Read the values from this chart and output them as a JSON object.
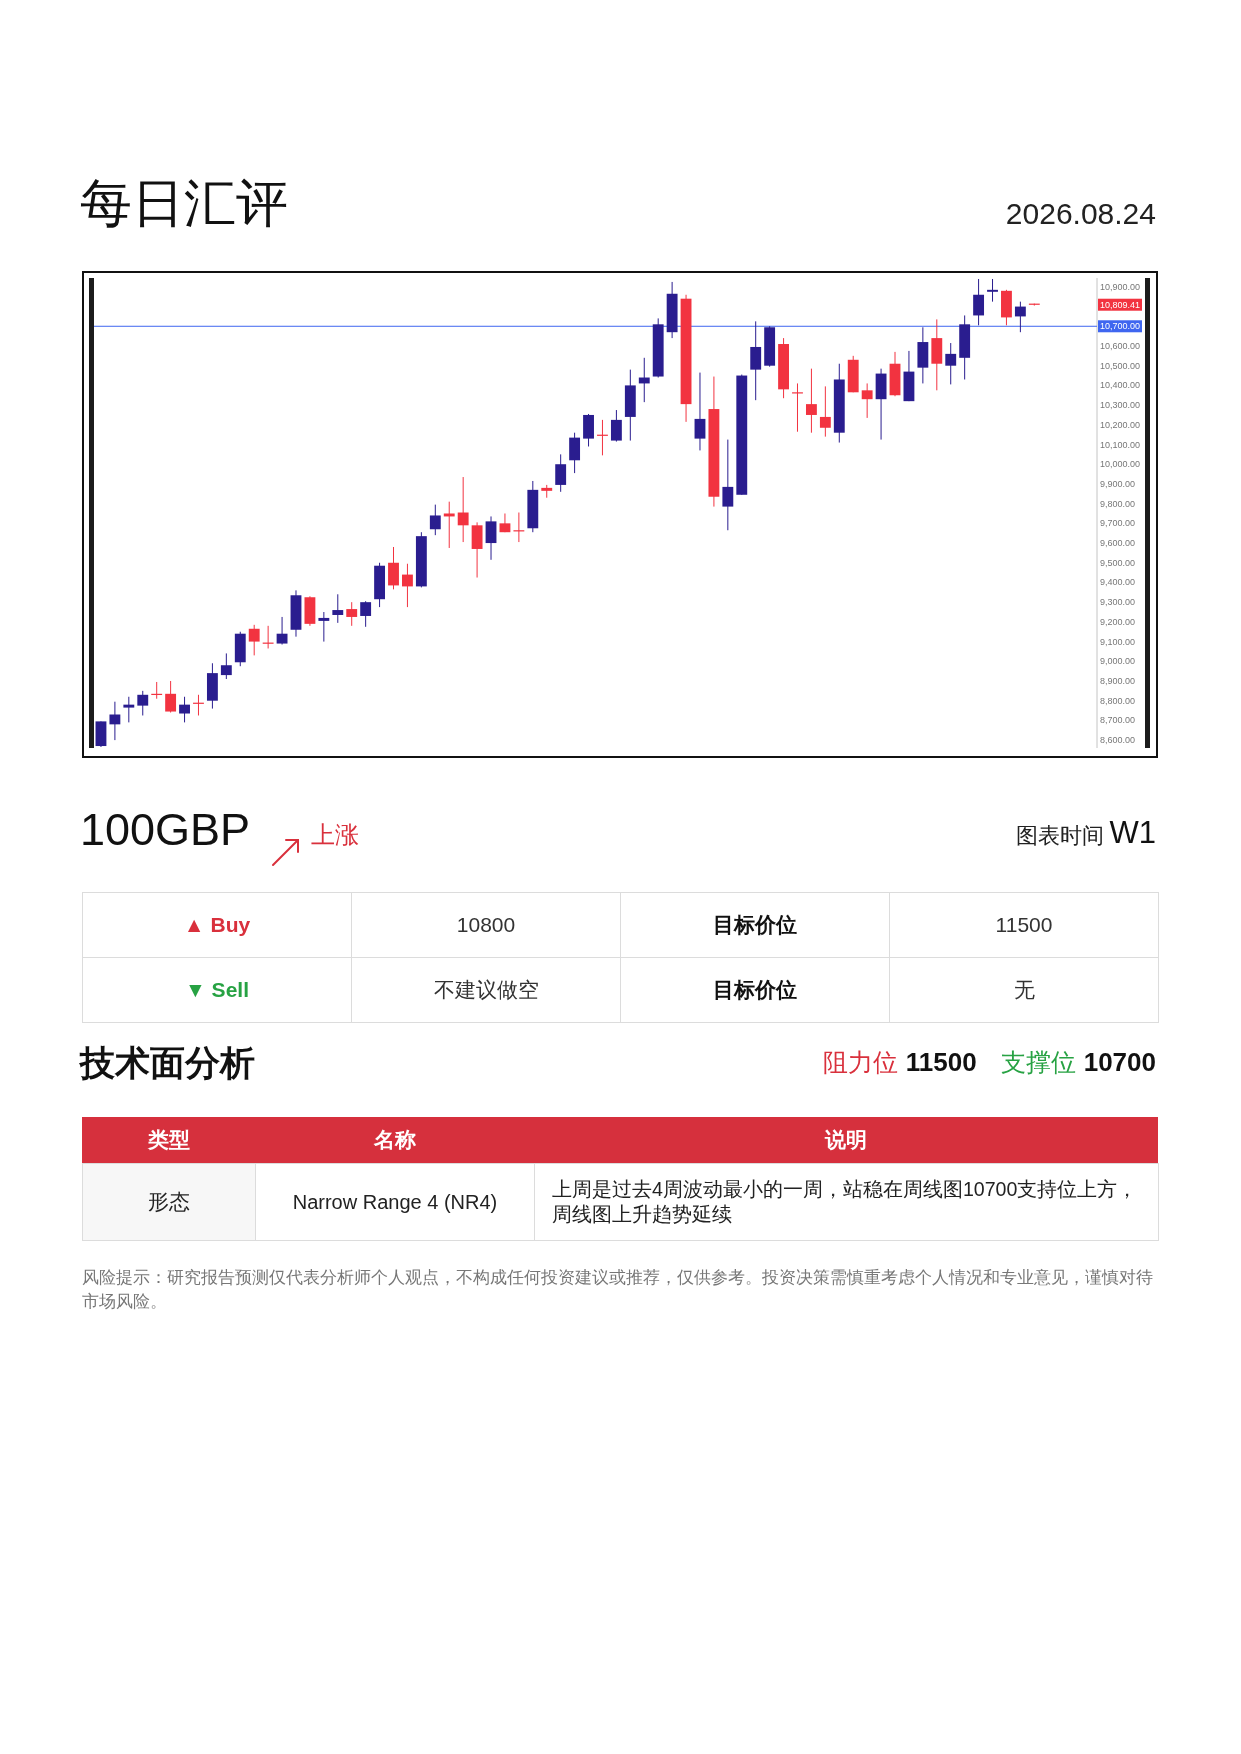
{
  "chart_data": {
    "type": "candlestick",
    "title": "每日汇评",
    "subtitle": "2026.08.24",
    "categories": [
      null,
      null,
      null,
      null,
      null,
      null,
      null,
      null,
      null,
      null,
      null,
      null,
      null,
      null,
      null,
      null,
      null,
      null,
      null,
      null,
      null,
      null,
      null,
      null,
      null,
      null,
      null,
      null,
      null,
      null,
      null,
      null,
      null,
      null,
      null,
      null,
      null,
      null,
      null,
      null,
      null,
      null,
      null,
      null,
      null,
      null,
      null,
      null,
      null,
      null,
      null,
      null,
      null,
      null,
      null,
      null,
      null,
      null,
      null,
      null,
      null,
      null,
      null,
      null,
      null,
      null,
      null,
      null,
      null,
      null,
      null,
      null
    ],
    "ohlc": [
      [
        8570,
        8695,
        8565,
        8695
      ],
      [
        8680,
        8795,
        8600,
        8730
      ],
      [
        8765,
        8820,
        8690,
        8780
      ],
      [
        8775,
        8850,
        8725,
        8830
      ],
      [
        8835,
        8895,
        8810,
        8830
      ],
      [
        8835,
        8900,
        8740,
        8745
      ],
      [
        8735,
        8820,
        8690,
        8780
      ],
      [
        8790,
        8830,
        8725,
        8785
      ],
      [
        8800,
        8990,
        8760,
        8940
      ],
      [
        8930,
        9040,
        8910,
        8980
      ],
      [
        8995,
        9150,
        8975,
        9140
      ],
      [
        9165,
        9185,
        9030,
        9100
      ],
      [
        9095,
        9180,
        9065,
        9090
      ],
      [
        9090,
        9225,
        9085,
        9140
      ],
      [
        9160,
        9360,
        9125,
        9335
      ],
      [
        9325,
        9330,
        9180,
        9190
      ],
      [
        9205,
        9250,
        9100,
        9220
      ],
      [
        9235,
        9340,
        9195,
        9260
      ],
      [
        9265,
        9300,
        9180,
        9225
      ],
      [
        9230,
        9305,
        9175,
        9300
      ],
      [
        9315,
        9500,
        9275,
        9485
      ],
      [
        9500,
        9580,
        9365,
        9385
      ],
      [
        9440,
        9495,
        9275,
        9380
      ],
      [
        9380,
        9655,
        9375,
        9635
      ],
      [
        9670,
        9795,
        9640,
        9740
      ],
      [
        9750,
        9810,
        9575,
        9735
      ],
      [
        9755,
        9935,
        9605,
        9690
      ],
      [
        9690,
        9705,
        9425,
        9570
      ],
      [
        9600,
        9735,
        9515,
        9710
      ],
      [
        9700,
        9750,
        9655,
        9655
      ],
      [
        9665,
        9755,
        9605,
        9660
      ],
      [
        9675,
        9915,
        9655,
        9870
      ],
      [
        9880,
        9895,
        9830,
        9865
      ],
      [
        9895,
        10050,
        9860,
        10000
      ],
      [
        10020,
        10160,
        9955,
        10135
      ],
      [
        10130,
        10255,
        10090,
        10250
      ],
      [
        10150,
        10225,
        10045,
        10145
      ],
      [
        10120,
        10275,
        10115,
        10225
      ],
      [
        10240,
        10480,
        10120,
        10400
      ],
      [
        10410,
        10540,
        10315,
        10440
      ],
      [
        10445,
        10740,
        10440,
        10710
      ],
      [
        10670,
        10925,
        10640,
        10865
      ],
      [
        10840,
        10860,
        10215,
        10305
      ],
      [
        10130,
        10465,
        10070,
        10230
      ],
      [
        10280,
        10445,
        9785,
        9835
      ],
      [
        9785,
        10125,
        9665,
        9885
      ],
      [
        9845,
        10455,
        9845,
        10450
      ],
      [
        10480,
        10725,
        10325,
        10595
      ],
      [
        10500,
        10700,
        10495,
        10695
      ],
      [
        10610,
        10640,
        10335,
        10380
      ],
      [
        10365,
        10410,
        10165,
        10360
      ],
      [
        10305,
        10485,
        10160,
        10250
      ],
      [
        10240,
        10395,
        10140,
        10185
      ],
      [
        10160,
        10510,
        10110,
        10430
      ],
      [
        10530,
        10550,
        10365,
        10365
      ],
      [
        10375,
        10410,
        10235,
        10330
      ],
      [
        10330,
        10485,
        10125,
        10460
      ],
      [
        10510,
        10570,
        10345,
        10350
      ],
      [
        10320,
        10575,
        10320,
        10470
      ],
      [
        10490,
        10695,
        10410,
        10620
      ],
      [
        10640,
        10735,
        10375,
        10510
      ],
      [
        10500,
        10615,
        10405,
        10560
      ],
      [
        10540,
        10755,
        10430,
        10710
      ],
      [
        10755,
        10940,
        10705,
        10860
      ],
      [
        10875,
        10940,
        10825,
        10885
      ],
      [
        10880,
        10885,
        10705,
        10745
      ],
      [
        10750,
        10825,
        10670,
        10800
      ],
      [
        10815,
        10815,
        10805,
        10809.41
      ],
      null,
      null,
      null,
      null
    ],
    "colors": [
      "#2a1d8f",
      "#2a1d8f",
      "#2a1d8f",
      "#2a1d8f",
      "#f23340",
      "#f23340",
      "#2a1d8f",
      "#f23340",
      "#2a1d8f",
      "#2a1d8f",
      "#2a1d8f",
      "#f23340",
      "#f23340",
      "#2a1d8f",
      "#2a1d8f",
      "#f23340",
      "#2a1d8f",
      "#2a1d8f",
      "#f23340",
      "#2a1d8f",
      "#2a1d8f",
      "#f23340",
      "#f23340",
      "#2a1d8f",
      "#2a1d8f",
      "#f23340",
      "#f23340",
      "#f23340",
      "#2a1d8f",
      "#f23340",
      "#f23340",
      "#2a1d8f",
      "#f23340",
      "#2a1d8f",
      "#2a1d8f",
      "#2a1d8f",
      "#f23340",
      "#2a1d8f",
      "#2a1d8f",
      "#2a1d8f",
      "#2a1d8f",
      "#2a1d8f",
      "#f23340",
      "#2a1d8f",
      "#f23340",
      "#2a1d8f",
      "#2a1d8f",
      "#2a1d8f",
      "#2a1d8f",
      "#f23340",
      "#f23340",
      "#f23340",
      "#f23340",
      "#2a1d8f",
      "#f23340",
      "#f23340",
      "#2a1d8f",
      "#f23340",
      "#2a1d8f",
      "#2a1d8f",
      "#f23340",
      "#2a1d8f",
      "#2a1d8f",
      "#2a1d8f",
      "#2a1d8f",
      "#f23340",
      "#2a1d8f",
      "#f23340",
      null,
      null,
      null,
      null
    ],
    "ylim": [
      8560,
      10945
    ],
    "yticks": [
      {
        "value": 10900,
        "label": "10,900.00"
      },
      {
        "value": 10600,
        "label": "10,600.00"
      },
      {
        "value": 10500,
        "label": "10,500.00"
      },
      {
        "value": 10400,
        "label": "10,400.00"
      },
      {
        "value": 10300,
        "label": "10,300.00"
      },
      {
        "value": 10200,
        "label": "10,200.00"
      },
      {
        "value": 10100,
        "label": "10,100.00"
      },
      {
        "value": 10000,
        "label": "10,000.00"
      },
      {
        "value": 9900,
        "label": "9,900.00"
      },
      {
        "value": 9800,
        "label": "9,800.00"
      },
      {
        "value": 9700,
        "label": "9,700.00"
      },
      {
        "value": 9600,
        "label": "9,600.00"
      },
      {
        "value": 9500,
        "label": "9,500.00"
      },
      {
        "value": 9400,
        "label": "9,400.00"
      },
      {
        "value": 9300,
        "label": "9,300.00"
      },
      {
        "value": 9200,
        "label": "9,200.00"
      },
      {
        "value": 9100,
        "label": "9,100.00"
      },
      {
        "value": 9000,
        "label": "9,000.00"
      },
      {
        "value": 8900,
        "label": "8,900.00"
      },
      {
        "value": 8800,
        "label": "8,800.00"
      },
      {
        "value": 8700,
        "label": "8,700.00"
      },
      {
        "value": 8600,
        "label": "8,600.00"
      }
    ],
    "tick_labels": "y",
    "ref_lines": [
      {
        "axis": "y",
        "value": 10700,
        "label": "10,700.00",
        "color": "#3f66f0"
      }
    ],
    "annotations": [
      "100GBP",
      "上涨",
      "图表时间",
      "W1",
      "▲ Buy",
      "10800",
      "目标价位",
      "11500",
      "▼ Sell",
      "不建议做空",
      "目标价位",
      "无",
      "技术面分析",
      "阻力位",
      "11500",
      "支撑位",
      "10700",
      "类型",
      "名称",
      "说明",
      "形态",
      "Narrow Range 4 (NR4)",
      "上周是过去4周波动最小的一周，站稳在周线图10700支持位上方，周线图上升趋势延续",
      "风险提示：研究报告预测仅代表分析师个人观点，不构成任何投资建议或推荐，仅供参考。投资决策需慎重考虑个人情况和专业意见，谨慎对待市场风险。",
      "10,809.41"
    ]
  }
}
